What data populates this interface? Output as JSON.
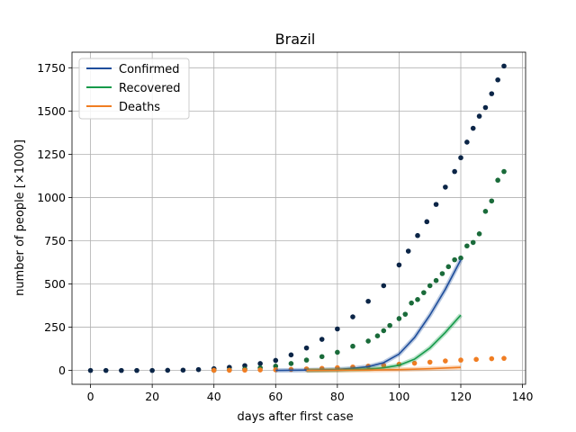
{
  "chart_data": {
    "type": "scatter",
    "title": "Brazil",
    "xlabel": "days after first case",
    "ylabel": "number of people [×1000]",
    "xlim": [
      -6,
      141
    ],
    "ylim": [
      -80,
      1840
    ],
    "xticks": [
      0,
      20,
      40,
      60,
      80,
      100,
      120,
      140
    ],
    "yticks": [
      0,
      250,
      500,
      750,
      1000,
      1250,
      1500,
      1750
    ],
    "grid": true,
    "legend_position": "top-left",
    "legend": [
      {
        "label": "Confirmed",
        "color": "#1f4e9c"
      },
      {
        "label": "Recovered",
        "color": "#159a4a"
      },
      {
        "label": "Deaths",
        "color": "#f07d22"
      }
    ],
    "series": [
      {
        "name": "Confirmed",
        "kind": "points",
        "color": "#0b2547",
        "x": [
          0,
          5,
          10,
          15,
          20,
          25,
          30,
          35,
          40,
          45,
          50,
          55,
          60,
          65,
          70,
          75,
          80,
          85,
          90,
          95,
          100,
          103,
          106,
          109,
          112,
          115,
          118,
          120,
          122,
          124,
          126,
          128,
          130,
          132,
          134
        ],
        "y": [
          0,
          0,
          0,
          0,
          0,
          1,
          2,
          5,
          10,
          18,
          28,
          40,
          58,
          90,
          130,
          180,
          240,
          310,
          400,
          490,
          610,
          690,
          780,
          860,
          960,
          1060,
          1150,
          1230,
          1320,
          1400,
          1470,
          1520,
          1600,
          1680,
          1760
        ]
      },
      {
        "name": "Recovered",
        "kind": "points",
        "color": "#1a6b3a",
        "x": [
          40,
          45,
          50,
          55,
          60,
          65,
          70,
          75,
          80,
          85,
          90,
          93,
          95,
          97,
          100,
          102,
          104,
          106,
          108,
          110,
          112,
          114,
          116,
          118,
          120,
          122,
          124,
          126,
          128,
          130,
          132,
          134
        ],
        "y": [
          1,
          3,
          8,
          15,
          25,
          40,
          60,
          80,
          105,
          140,
          170,
          200,
          230,
          260,
          300,
          325,
          390,
          410,
          450,
          490,
          520,
          560,
          600,
          640,
          650,
          720,
          740,
          790,
          920,
          980,
          1100,
          1150
        ]
      },
      {
        "name": "Deaths",
        "kind": "points",
        "color": "#f07d22",
        "x": [
          40,
          45,
          50,
          55,
          60,
          65,
          70,
          75,
          80,
          85,
          90,
          95,
          100,
          105,
          110,
          115,
          120,
          125,
          130,
          134
        ],
        "y": [
          1,
          1,
          2,
          3,
          4,
          6,
          9,
          12,
          16,
          20,
          25,
          30,
          36,
          42,
          48,
          55,
          60,
          64,
          68,
          70
        ]
      },
      {
        "name": "Confirmed",
        "kind": "model",
        "color": "#1f4e9c",
        "x": [
          60,
          70,
          80,
          85,
          90,
          95,
          100,
          105,
          110,
          115,
          120
        ],
        "y": [
          0,
          2,
          6,
          12,
          22,
          45,
          95,
          190,
          320,
          470,
          640
        ]
      },
      {
        "name": "Recovered",
        "kind": "model",
        "color": "#159a4a",
        "x": [
          70,
          80,
          90,
          95,
          100,
          105,
          110,
          115,
          120
        ],
        "y": [
          0,
          2,
          8,
          15,
          30,
          65,
          130,
          220,
          320
        ]
      },
      {
        "name": "Deaths",
        "kind": "model",
        "color": "#f07d22",
        "x": [
          70,
          80,
          90,
          100,
          110,
          120
        ],
        "y": [
          0,
          1,
          2,
          5,
          10,
          18
        ]
      }
    ]
  }
}
